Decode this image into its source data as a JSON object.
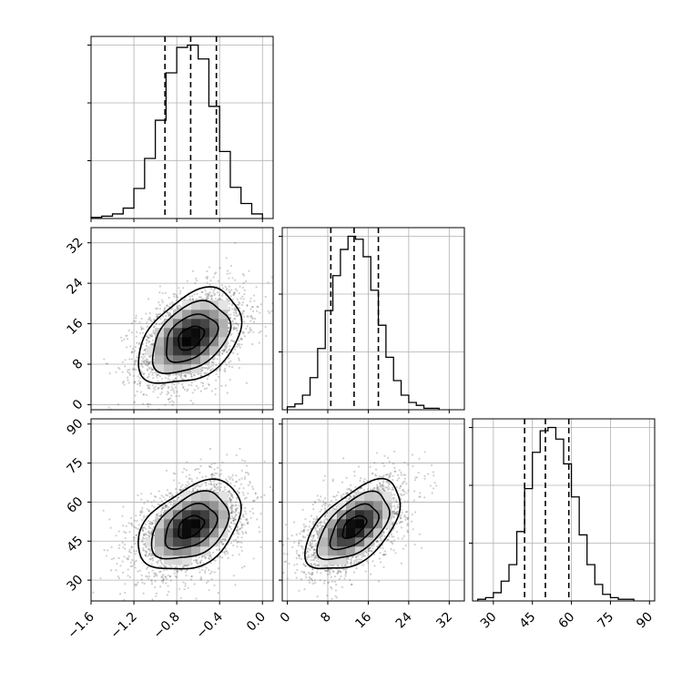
{
  "chart_data": {
    "type": "corner",
    "grid": true,
    "parameters": [
      {
        "name": "",
        "range": [
          -1.6,
          0.1
        ],
        "ticks": [
          -1.6,
          -1.2,
          -0.8,
          -0.4,
          0.0
        ],
        "tick_labels": [
          "−1.6",
          "−1.2",
          "−0.8",
          "−0.4",
          "0.0"
        ],
        "quantiles": [
          -0.91,
          -0.67,
          -0.43
        ],
        "mean": -0.67,
        "sd": 0.24
      },
      {
        "name": "",
        "range": [
          -1,
          35
        ],
        "ticks": [
          0,
          8,
          16,
          24,
          32
        ],
        "tick_labels": [
          "0",
          "8",
          "16",
          "24",
          "32"
        ],
        "quantiles": [
          8.6,
          13.2,
          18.0
        ],
        "mean": 13.2,
        "sd": 4.7
      },
      {
        "name": "",
        "range": [
          22,
          92
        ],
        "ticks": [
          30,
          45,
          60,
          75,
          90
        ],
        "tick_labels": [
          "30",
          "45",
          "60",
          "75",
          "90"
        ],
        "quantiles": [
          42.0,
          50.0,
          59.0
        ],
        "mean": 50.5,
        "sd": 8.6
      }
    ],
    "histograms": [
      {
        "param": 0,
        "edges": [
          -1.6,
          -1.5,
          -1.4,
          -1.3,
          -1.2,
          -1.1,
          -1.0,
          -0.9,
          -0.8,
          -0.7,
          -0.6,
          -0.5,
          -0.4,
          -0.3,
          -0.2,
          -0.1,
          0.0
        ],
        "counts": [
          1,
          2,
          4,
          9,
          26,
          52,
          85,
          126,
          148,
          150,
          138,
          97,
          58,
          27,
          13,
          4
        ]
      },
      {
        "param": 1,
        "edges": [
          0,
          1.5,
          3,
          4.5,
          6,
          7.5,
          9,
          10.5,
          12,
          13.5,
          15,
          16.5,
          18,
          19.5,
          21,
          22.5,
          24,
          25.5,
          27,
          28.5,
          30
        ],
        "counts": [
          2,
          4,
          10,
          22,
          42,
          68,
          92,
          110,
          119,
          117,
          105,
          82,
          58,
          36,
          20,
          10,
          5,
          3,
          1,
          1
        ]
      },
      {
        "param": 2,
        "edges": [
          24,
          27,
          30,
          33,
          36,
          39,
          42,
          45,
          48,
          51,
          54,
          57,
          60,
          63,
          66,
          69,
          72,
          75,
          78,
          81,
          84
        ],
        "counts": [
          1,
          2,
          5,
          12,
          22,
          42,
          68,
          90,
          103,
          105,
          98,
          83,
          63,
          40,
          22,
          10,
          4,
          2,
          1,
          1
        ]
      }
    ],
    "pairs": [
      {
        "x_param": 0,
        "y_param": 1,
        "correlation": 0.4
      },
      {
        "x_param": 0,
        "y_param": 2,
        "correlation": 0.4
      },
      {
        "x_param": 1,
        "y_param": 2,
        "correlation": 0.55
      }
    ],
    "contour_levels": [
      0.5,
      1.0,
      1.5,
      2.0
    ]
  }
}
